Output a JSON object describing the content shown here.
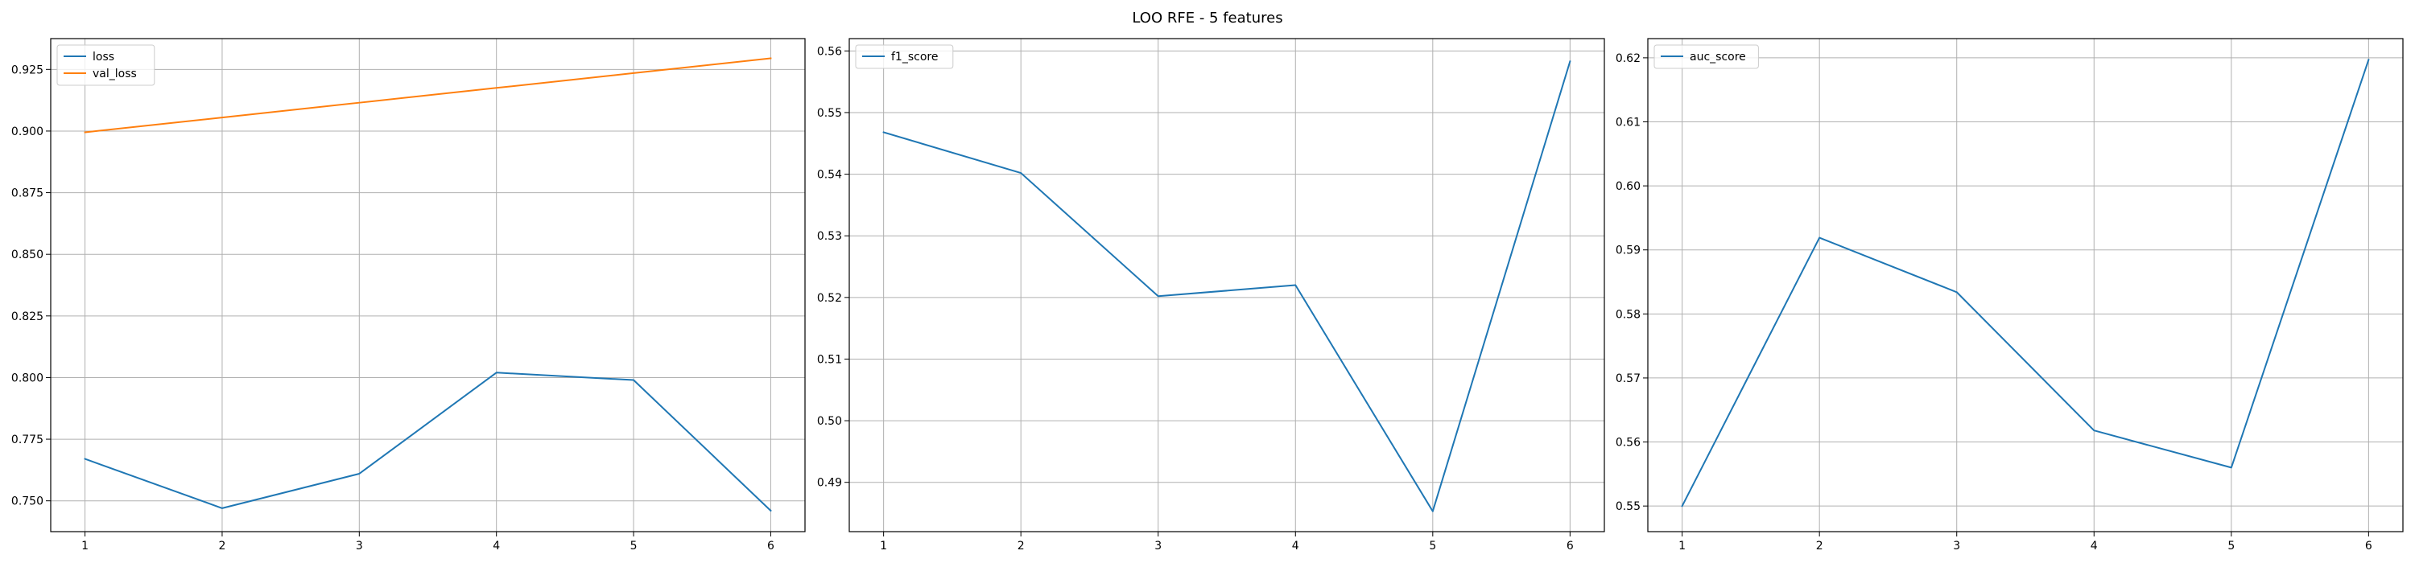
{
  "figure": {
    "title": "LOO RFE - 5 features"
  },
  "chart_data": [
    {
      "type": "line",
      "x": [
        1,
        2,
        3,
        4,
        5,
        6
      ],
      "xlim": [
        0.75,
        6.25
      ],
      "ylim": [
        0.7375,
        0.9375
      ],
      "xticks": [
        1,
        2,
        3,
        4,
        5,
        6
      ],
      "yticks": [
        0.75,
        0.775,
        0.8,
        0.825,
        0.85,
        0.875,
        0.9,
        0.925
      ],
      "ytick_decimals": 3,
      "grid": true,
      "legend_position": "top-left",
      "series": [
        {
          "name": "loss",
          "color": "#1f77b4",
          "values": [
            0.767,
            0.747,
            0.761,
            0.802,
            0.799,
            0.746
          ]
        },
        {
          "name": "val_loss",
          "color": "#ff7f0e",
          "values": [
            0.8995,
            0.9055,
            0.9115,
            0.9175,
            0.9235,
            0.9295
          ]
        }
      ]
    },
    {
      "type": "line",
      "x": [
        1,
        2,
        3,
        4,
        5,
        6
      ],
      "xlim": [
        0.75,
        6.25
      ],
      "ylim": [
        0.482,
        0.562
      ],
      "xticks": [
        1,
        2,
        3,
        4,
        5,
        6
      ],
      "yticks": [
        0.49,
        0.5,
        0.51,
        0.52,
        0.53,
        0.54,
        0.55,
        0.56
      ],
      "ytick_decimals": 2,
      "grid": true,
      "legend_position": "top-left",
      "series": [
        {
          "name": "f1_score",
          "color": "#1f77b4",
          "values": [
            0.5468,
            0.5402,
            0.5202,
            0.522,
            0.4853,
            0.5583
          ]
        }
      ]
    },
    {
      "type": "line",
      "x": [
        1,
        2,
        3,
        4,
        5,
        6
      ],
      "xlim": [
        0.75,
        6.25
      ],
      "ylim": [
        0.546,
        0.623
      ],
      "xticks": [
        1,
        2,
        3,
        4,
        5,
        6
      ],
      "yticks": [
        0.55,
        0.56,
        0.57,
        0.58,
        0.59,
        0.6,
        0.61,
        0.62
      ],
      "ytick_decimals": 2,
      "grid": true,
      "legend_position": "top-left",
      "series": [
        {
          "name": "auc_score",
          "color": "#1f77b4",
          "values": [
            0.55,
            0.5919,
            0.5834,
            0.5618,
            0.556,
            0.6197
          ]
        }
      ]
    }
  ]
}
